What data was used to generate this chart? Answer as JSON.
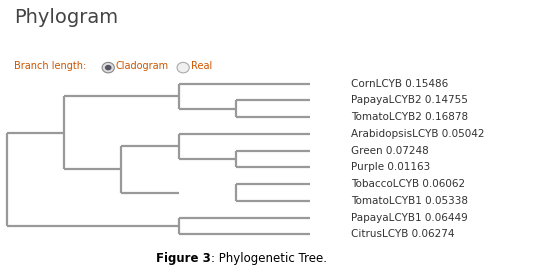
{
  "title": "Phylogram",
  "branch_length_label": "Branch length:",
  "radio_options": [
    "Cladogram",
    "Real"
  ],
  "figure_caption_bold": "Figure 3",
  "figure_caption_rest": ": Phylogenetic Tree.",
  "taxa": [
    "CornLCYB 0.15486",
    "PapayaLCYB2 0.14755",
    "TomatoLCYB2 0.16878",
    "ArabidopsisLCYB 0.05042",
    "Green 0.07248",
    "Purple 0.01163",
    "TobaccoLCYB 0.06062",
    "TomatoLCYB1 0.05338",
    "PapayaLCYB1 0.06449",
    "CitrusLCYB 0.06274"
  ],
  "line_color": "#999999",
  "line_width": 1.6,
  "bg_color": "#ffffff",
  "title_fontsize": 14,
  "label_fontsize": 7.5,
  "caption_fontsize": 8.5,
  "header_text_color": "#cc5500",
  "title_color": "#444444"
}
